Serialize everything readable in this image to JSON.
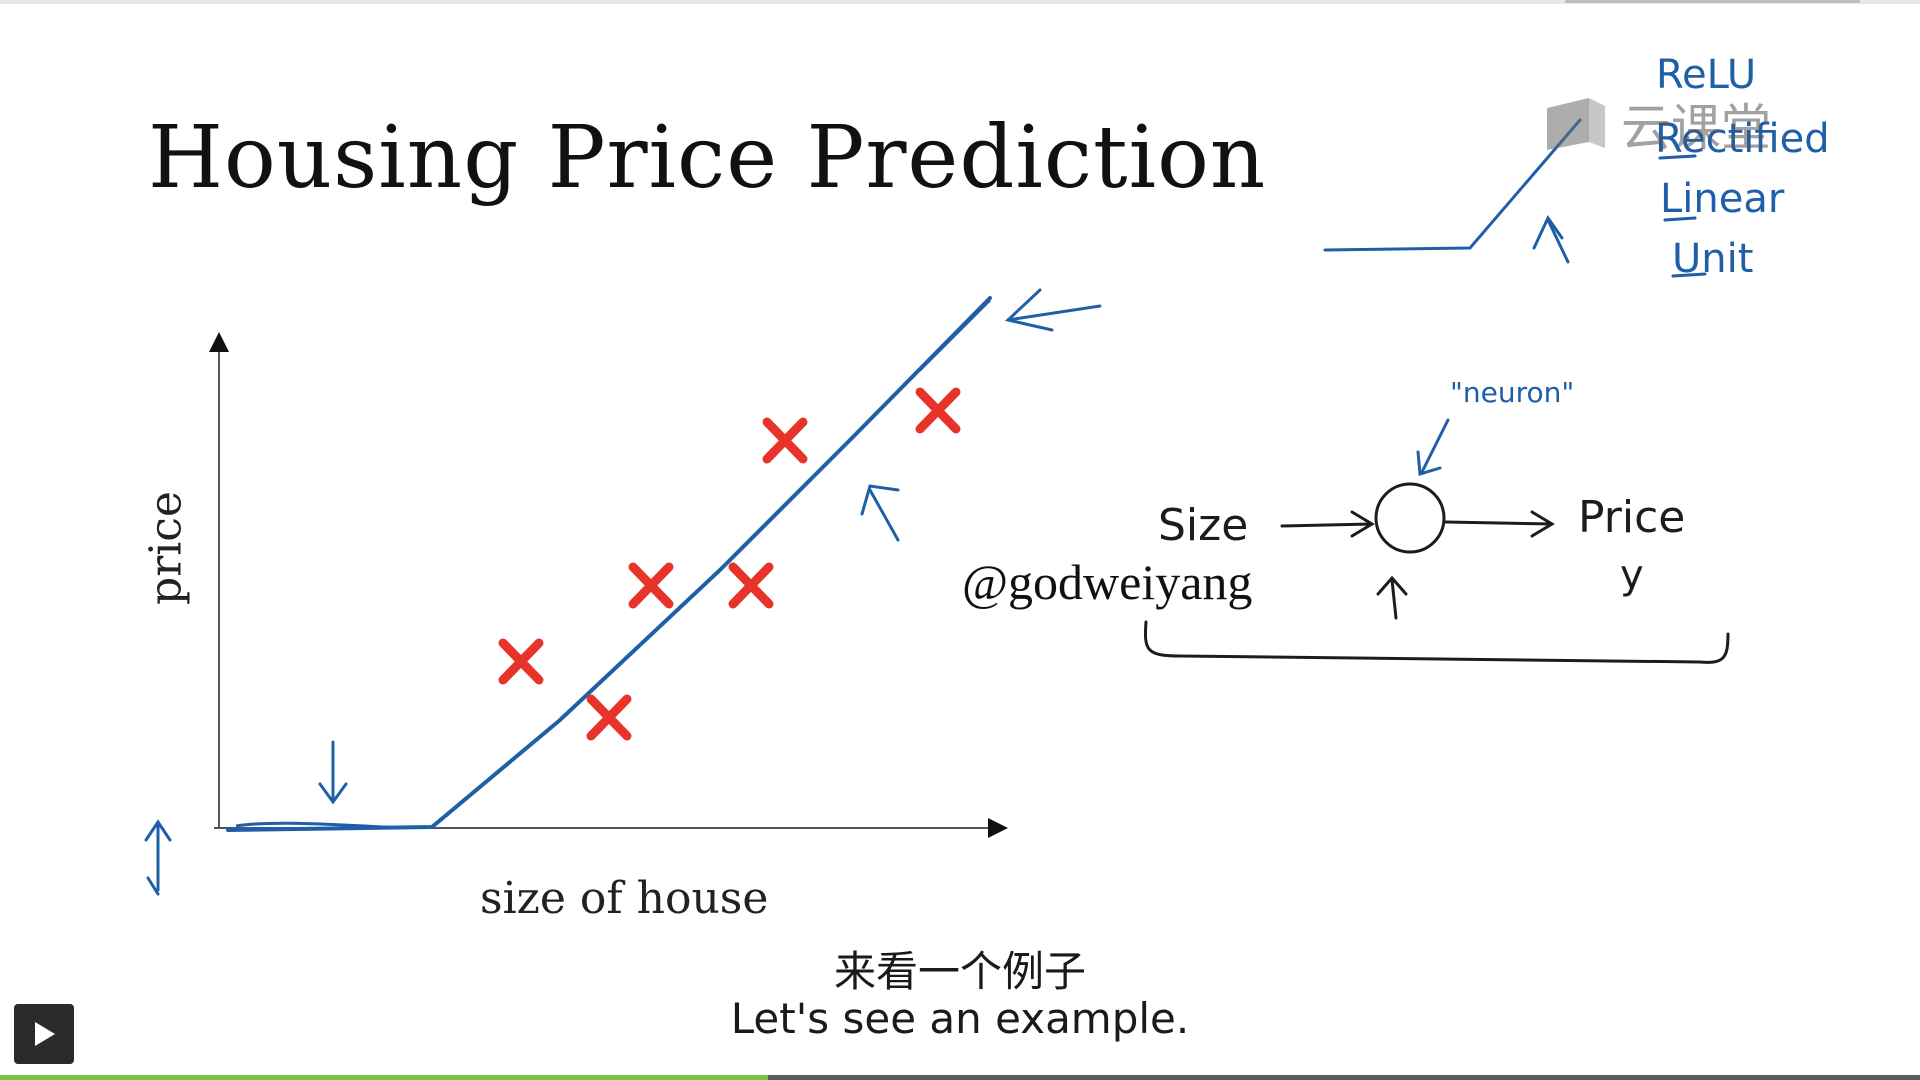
{
  "slide": {
    "title": "Housing Price Prediction",
    "x_axis_label": "size of house",
    "y_axis_label": "price"
  },
  "annotations": {
    "relu_lines": [
      "ReLU",
      "Rectified",
      "Linear",
      "Unit"
    ],
    "neuron_label": "\"neuron\"",
    "input_label": "Size",
    "output_label": "Price",
    "output_symbol": "y",
    "colors": {
      "ink": "#1f5fa8",
      "marker": "#e8332a"
    }
  },
  "watermark": {
    "user": "@godweiyang",
    "brand": "云课堂"
  },
  "subtitles": {
    "chinese": "来看一个例子",
    "english": "Let's see an example."
  },
  "player": {
    "progress": 0.4
  }
}
